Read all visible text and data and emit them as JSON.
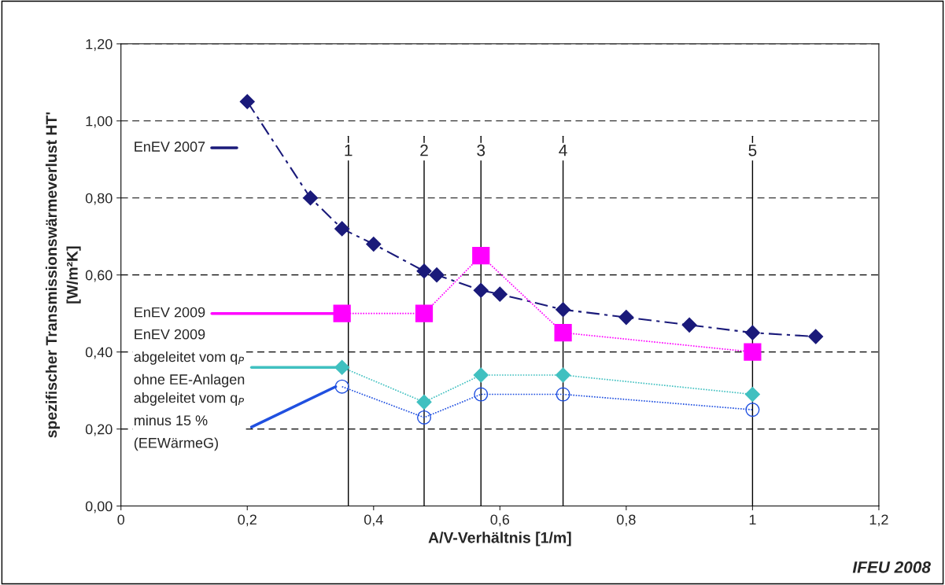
{
  "chart_data": {
    "type": "line",
    "xlabel": "A/V-Verhältnis [1/m]",
    "ylabel": "spezifischer Transmissionswärmeverlust HT'\n[W/m²K]",
    "xlim": [
      0,
      1.2
    ],
    "xticks": [
      0,
      {
        "value": 0.2,
        "label": "0,2"
      },
      {
        "value": 0.4,
        "label": "0,4"
      },
      {
        "value": 0.6,
        "label": "0,6"
      },
      {
        "value": 0.8,
        "label": "0,8"
      },
      1,
      {
        "value": 1.2,
        "label": "1,2"
      }
    ],
    "ylim": [
      0,
      1.2
    ],
    "yticks": [
      {
        "value": 0,
        "label": "0,00"
      },
      {
        "value": 0.2,
        "label": "0,20"
      },
      {
        "value": 0.4,
        "label": "0,40"
      },
      {
        "value": 0.6,
        "label": "0,60"
      },
      {
        "value": 0.8,
        "label": "0,80"
      },
      {
        "value": 1.0,
        "label": "1,00"
      },
      {
        "value": 1.2,
        "label": "1,20"
      }
    ],
    "grid": "y",
    "series": [
      {
        "name": "EnEV 2007",
        "color": "#1a1a7a",
        "marker": "diamond",
        "line_style": "dashed",
        "x": [
          0.2,
          0.3,
          0.35,
          0.4,
          0.48,
          0.5,
          0.57,
          0.6,
          0.7,
          0.8,
          0.9,
          1.0,
          1.1
        ],
        "values": [
          1.05,
          0.8,
          0.72,
          0.68,
          0.61,
          0.6,
          0.56,
          0.55,
          0.51,
          0.49,
          0.47,
          0.45,
          0.44
        ]
      },
      {
        "name": "EnEV 2009",
        "color": "#ff00ff",
        "marker": "square",
        "line_style": "dotted",
        "x": [
          0.35,
          0.48,
          0.57,
          0.7,
          1.0
        ],
        "values": [
          0.5,
          0.5,
          0.65,
          0.45,
          0.4
        ]
      },
      {
        "name": "EnEV 2009\nabgeleitet vom q$_{P}$\nohne EE-Anlagen",
        "color": "#40c0c0",
        "marker": "diamond",
        "line_style": "dotted",
        "x": [
          0.35,
          0.48,
          0.57,
          0.7,
          1.0
        ],
        "values": [
          0.36,
          0.27,
          0.34,
          0.34,
          0.29
        ]
      },
      {
        "name": "abgeleitet vom q$_{P}$\nminus 15 %\n(EEWärmeG)",
        "color": "#2050e0",
        "marker": "circle",
        "line_style": "dotted",
        "x": [
          0.35,
          0.48,
          0.57,
          0.7,
          1.0
        ],
        "values": [
          0.31,
          0.23,
          0.29,
          0.29,
          0.25
        ]
      }
    ],
    "ref_lines": [
      {
        "axis": "x",
        "value": 0.36,
        "color": "#000000"
      },
      {
        "axis": "x",
        "value": 0.48,
        "color": "#000000"
      },
      {
        "axis": "x",
        "value": 0.57,
        "color": "#000000"
      },
      {
        "axis": "x",
        "value": 0.7,
        "color": "#000000"
      },
      {
        "axis": "x",
        "value": 1.0,
        "color": "#000000"
      }
    ],
    "annotations": [
      {
        "text": "1",
        "x": 0.36,
        "y": 0.92
      },
      {
        "text": "2",
        "x": 0.48,
        "y": 0.92
      },
      {
        "text": "3",
        "x": 0.57,
        "y": 0.92
      },
      {
        "text": "4",
        "x": 0.7,
        "y": 0.92
      },
      {
        "text": "5",
        "x": 1.0,
        "y": 0.92
      },
      "IFEU 2008"
    ]
  }
}
